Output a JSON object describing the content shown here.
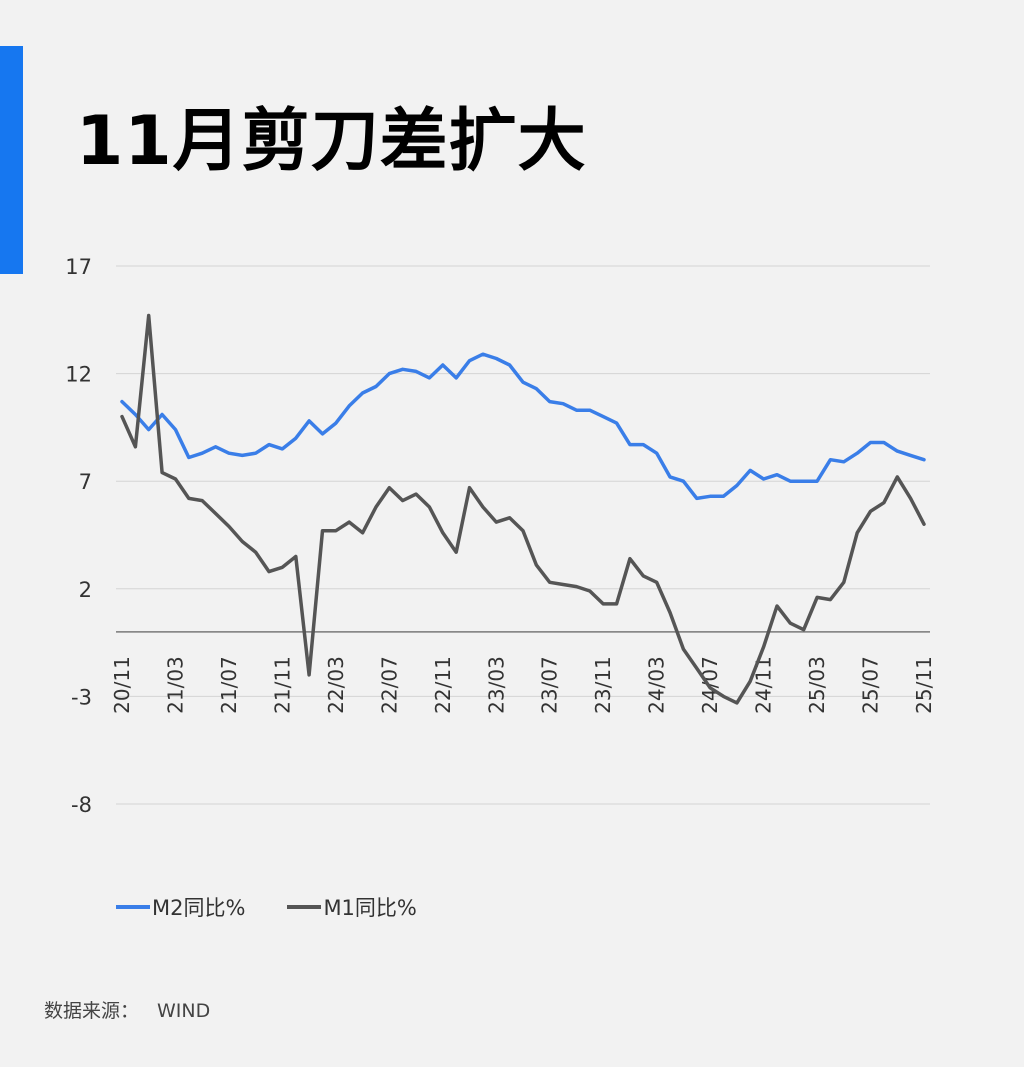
{
  "title": "11月剪刀差扩大",
  "source": {
    "label": "数据来源：",
    "value": "WIND"
  },
  "colors": {
    "accent": "#1677f0",
    "m2": "#3a7ee8",
    "m1": "#555555"
  },
  "chart_data": {
    "type": "line",
    "title": "",
    "xlabel": "",
    "ylabel": "",
    "ylim": [
      -8,
      17
    ],
    "yticks": [
      17,
      12,
      7,
      2,
      -3,
      -8
    ],
    "xtick_labels": [
      "20/11",
      "21/03",
      "21/07",
      "21/11",
      "22/03",
      "22/07",
      "22/11",
      "23/03",
      "23/07",
      "23/11",
      "24/03",
      "24/07",
      "24/11",
      "25/03",
      "25/07",
      "25/11"
    ],
    "grid": true,
    "legend_position": "bottom-left",
    "x": [
      "20/11",
      "20/12",
      "21/01",
      "21/02",
      "21/03",
      "21/04",
      "21/05",
      "21/06",
      "21/07",
      "21/08",
      "21/09",
      "21/10",
      "21/11",
      "21/12",
      "22/01",
      "22/02",
      "22/03",
      "22/04",
      "22/05",
      "22/06",
      "22/07",
      "22/08",
      "22/09",
      "22/10",
      "22/11",
      "22/12",
      "23/01",
      "23/02",
      "23/03",
      "23/04",
      "23/05",
      "23/06",
      "23/07",
      "23/08",
      "23/09",
      "23/10",
      "23/11",
      "23/12",
      "24/01",
      "24/02",
      "24/03",
      "24/04",
      "24/05",
      "24/06",
      "24/07",
      "24/08",
      "24/09",
      "24/10",
      "24/11",
      "24/12",
      "25/01",
      "25/02",
      "25/03",
      "25/04",
      "25/05",
      "25/06",
      "25/07",
      "25/08",
      "25/09",
      "25/10",
      "25/11"
    ],
    "series": [
      {
        "name": "M2同比%",
        "values": [
          10.7,
          10.1,
          9.4,
          10.1,
          9.4,
          8.1,
          8.3,
          8.6,
          8.3,
          8.2,
          8.3,
          8.7,
          8.5,
          9.0,
          9.8,
          9.2,
          9.7,
          10.5,
          11.1,
          11.4,
          12.0,
          12.2,
          12.1,
          11.8,
          12.4,
          11.8,
          12.6,
          12.9,
          12.7,
          12.4,
          11.6,
          11.3,
          10.7,
          10.6,
          10.3,
          10.3,
          10.0,
          9.7,
          8.7,
          8.7,
          8.3,
          7.2,
          7.0,
          6.2,
          6.3,
          6.3,
          6.8,
          7.5,
          7.1,
          7.3,
          7.0,
          7.0,
          7.0,
          8.0,
          7.9,
          8.3,
          8.8,
          8.8,
          8.4,
          8.2,
          8.0
        ]
      },
      {
        "name": "M1同比%",
        "values": [
          10.0,
          8.6,
          14.7,
          7.4,
          7.1,
          6.2,
          6.1,
          5.5,
          4.9,
          4.2,
          3.7,
          2.8,
          3.0,
          3.5,
          -2.0,
          4.7,
          4.7,
          5.1,
          4.6,
          5.8,
          6.7,
          6.1,
          6.4,
          5.8,
          4.6,
          3.7,
          6.7,
          5.8,
          5.1,
          5.3,
          4.7,
          3.1,
          2.3,
          2.2,
          2.1,
          1.9,
          1.3,
          1.3,
          3.4,
          2.6,
          2.3,
          0.9,
          -0.8,
          -1.7,
          -2.6,
          -3.0,
          -3.3,
          -2.3,
          -0.7,
          1.2,
          0.4,
          0.1,
          1.6,
          1.5,
          2.3,
          4.6,
          5.6,
          6.0,
          7.2,
          6.2,
          5.0
        ]
      }
    ]
  }
}
